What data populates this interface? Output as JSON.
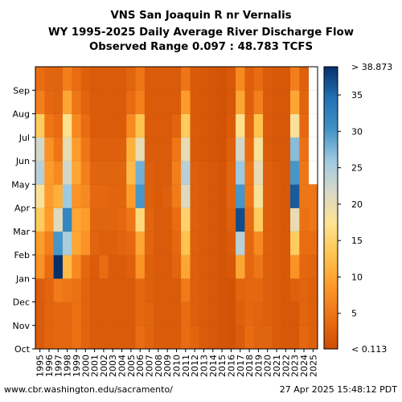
{
  "titles": {
    "line1": "VNS San Joaquin R nr Vernalis",
    "line2": "WY 1995-2025 Daily Average River Discharge Flow",
    "line3": "Observed Range 0.097 : 48.783 TCFS"
  },
  "footer": {
    "left": "www.cbr.washington.edu/sacramento/",
    "right": "27 Apr 2025 15:48:12 PDT"
  },
  "chart_data": {
    "type": "heatmap",
    "x_categories": [
      "1995",
      "1996",
      "1997",
      "1998",
      "1999",
      "2000",
      "2001",
      "2002",
      "2003",
      "2004",
      "2005",
      "2006",
      "2007",
      "2008",
      "2009",
      "2010",
      "2011",
      "2012",
      "2013",
      "2014",
      "2015",
      "2016",
      "2017",
      "2018",
      "2019",
      "2020",
      "2021",
      "2022",
      "2023",
      "2024",
      "2025"
    ],
    "y_months": [
      "Oct",
      "Nov",
      "Dec",
      "Jan",
      "Feb",
      "Mar",
      "Apr",
      "May",
      "Jun",
      "Jul",
      "Aug",
      "Sep"
    ],
    "units": "TCFS",
    "observed_range": [
      0.097,
      48.783
    ],
    "colorbar": {
      "ticks": [
        5,
        10,
        15,
        20,
        25,
        30,
        35
      ],
      "top_label": "> 38.873",
      "bottom_label": "< 0.113",
      "range": [
        0.113,
        38.873
      ],
      "stops": [
        "#cc4c02",
        "#ec7014",
        "#fe9929",
        "#fec44f",
        "#fee391",
        "#d8d8c8",
        "#9ecae1",
        "#4292c6",
        "#2171b5",
        "#08306b"
      ]
    },
    "monthly_flow_tcfs": {
      "1995": [
        2.0,
        2.0,
        2.2,
        8.0,
        9.0,
        14.0,
        18.0,
        24.0,
        22.0,
        14.0,
        6.0,
        4.0
      ],
      "1996": [
        3.0,
        3.0,
        3.0,
        4.0,
        6.0,
        9.0,
        9.0,
        9.0,
        8.0,
        5.0,
        3.5,
        3.0
      ],
      "1997": [
        3.5,
        3.5,
        5.5,
        38.9,
        30.0,
        21.0,
        11.0,
        7.0,
        5.0,
        4.0,
        3.0,
        3.0
      ],
      "1998": [
        3.5,
        3.5,
        5.0,
        12.0,
        25.0,
        32.0,
        26.0,
        22.0,
        20.0,
        17.0,
        10.0,
        6.0
      ],
      "1999": [
        4.5,
        4.5,
        4.5,
        7.0,
        10.0,
        10.0,
        8.0,
        10.0,
        9.0,
        7.0,
        5.0,
        4.0
      ],
      "2000": [
        3.0,
        3.0,
        3.0,
        3.5,
        8.0,
        9.0,
        7.0,
        6.0,
        5.0,
        4.0,
        3.0,
        2.5
      ],
      "2001": [
        2.0,
        2.0,
        2.0,
        2.0,
        3.0,
        3.0,
        3.5,
        3.0,
        2.5,
        2.0,
        2.0,
        2.0
      ],
      "2002": [
        2.0,
        2.0,
        2.0,
        4.0,
        2.5,
        3.0,
        3.5,
        3.0,
        2.5,
        2.0,
        2.0,
        2.0
      ],
      "2003": [
        2.0,
        2.0,
        2.0,
        2.0,
        2.5,
        3.0,
        3.0,
        3.0,
        2.5,
        2.0,
        2.0,
        2.0
      ],
      "2004": [
        2.0,
        2.0,
        2.0,
        2.0,
        3.0,
        3.5,
        3.0,
        3.0,
        2.5,
        2.0,
        2.0,
        2.0
      ],
      "2005": [
        2.0,
        2.0,
        2.0,
        2.5,
        3.5,
        5.0,
        9.0,
        12.0,
        11.0,
        7.0,
        4.0,
        3.0
      ],
      "2006": [
        4.0,
        3.5,
        3.5,
        8.0,
        10.0,
        16.0,
        30.0,
        28.0,
        20.0,
        13.0,
        6.0,
        5.0
      ],
      "2007": [
        3.0,
        3.0,
        2.5,
        2.5,
        3.0,
        3.0,
        2.5,
        2.5,
        2.0,
        2.0,
        2.0,
        2.0
      ],
      "2008": [
        2.0,
        2.0,
        2.0,
        2.0,
        2.0,
        2.0,
        2.0,
        2.0,
        2.0,
        2.0,
        2.0,
        2.0
      ],
      "2009": [
        2.0,
        2.0,
        2.0,
        2.0,
        2.0,
        2.0,
        2.5,
        2.0,
        2.0,
        2.0,
        2.0,
        2.0
      ],
      "2010": [
        2.0,
        2.0,
        2.0,
        3.0,
        3.5,
        4.0,
        5.5,
        6.0,
        5.0,
        3.0,
        2.0,
        2.0
      ],
      "2011": [
        4.0,
        4.0,
        5.5,
        10.0,
        13.0,
        15.0,
        21.0,
        24.0,
        20.0,
        14.0,
        9.0,
        5.0
      ],
      "2012": [
        3.0,
        2.5,
        2.5,
        2.5,
        2.5,
        2.5,
        2.5,
        2.5,
        2.0,
        2.0,
        2.0,
        2.0
      ],
      "2013": [
        2.0,
        2.0,
        2.0,
        2.0,
        2.0,
        2.0,
        2.0,
        2.0,
        1.5,
        1.5,
        1.5,
        1.5
      ],
      "2014": [
        1.5,
        1.5,
        1.5,
        1.5,
        1.5,
        1.5,
        1.5,
        1.5,
        1.2,
        1.2,
        1.2,
        1.2
      ],
      "2015": [
        1.2,
        1.2,
        1.2,
        1.2,
        1.2,
        1.2,
        1.2,
        1.2,
        1.0,
        1.0,
        1.0,
        1.0
      ],
      "2016": [
        1.0,
        1.0,
        1.0,
        1.5,
        2.0,
        2.5,
        3.0,
        3.0,
        2.5,
        2.0,
        1.5,
        1.5
      ],
      "2017": [
        2.0,
        2.5,
        3.0,
        10.0,
        24.0,
        37.0,
        30.0,
        26.0,
        22.0,
        17.0,
        10.0,
        7.0
      ],
      "2018": [
        4.0,
        3.5,
        3.5,
        3.5,
        3.5,
        4.0,
        5.0,
        5.0,
        4.0,
        3.0,
        2.5,
        2.5
      ],
      "2019": [
        3.0,
        3.0,
        3.5,
        5.0,
        7.0,
        14.0,
        18.0,
        20.0,
        18.0,
        13.0,
        6.0,
        4.0
      ],
      "2020": [
        3.0,
        2.5,
        2.5,
        2.5,
        2.5,
        2.5,
        2.5,
        2.5,
        2.0,
        2.0,
        2.0,
        2.0
      ],
      "2021": [
        2.0,
        2.0,
        2.0,
        2.0,
        2.0,
        2.0,
        2.0,
        2.0,
        1.5,
        1.5,
        1.5,
        1.5
      ],
      "2022": [
        1.5,
        1.5,
        1.5,
        1.5,
        1.5,
        1.5,
        1.5,
        1.5,
        1.5,
        1.5,
        1.5,
        1.5
      ],
      "2023": [
        1.5,
        1.5,
        2.5,
        8.0,
        14.0,
        20.0,
        36.0,
        30.0,
        27.0,
        18.0,
        10.0,
        6.0
      ],
      "2024": [
        3.5,
        3.0,
        3.0,
        3.5,
        4.0,
        4.5,
        5.0,
        5.0,
        4.5,
        3.5,
        3.0,
        2.5
      ],
      "2025": [
        2.5,
        2.5,
        2.5,
        3.0,
        4.0,
        5.0,
        5.0,
        null,
        null,
        null,
        null,
        null
      ]
    }
  }
}
